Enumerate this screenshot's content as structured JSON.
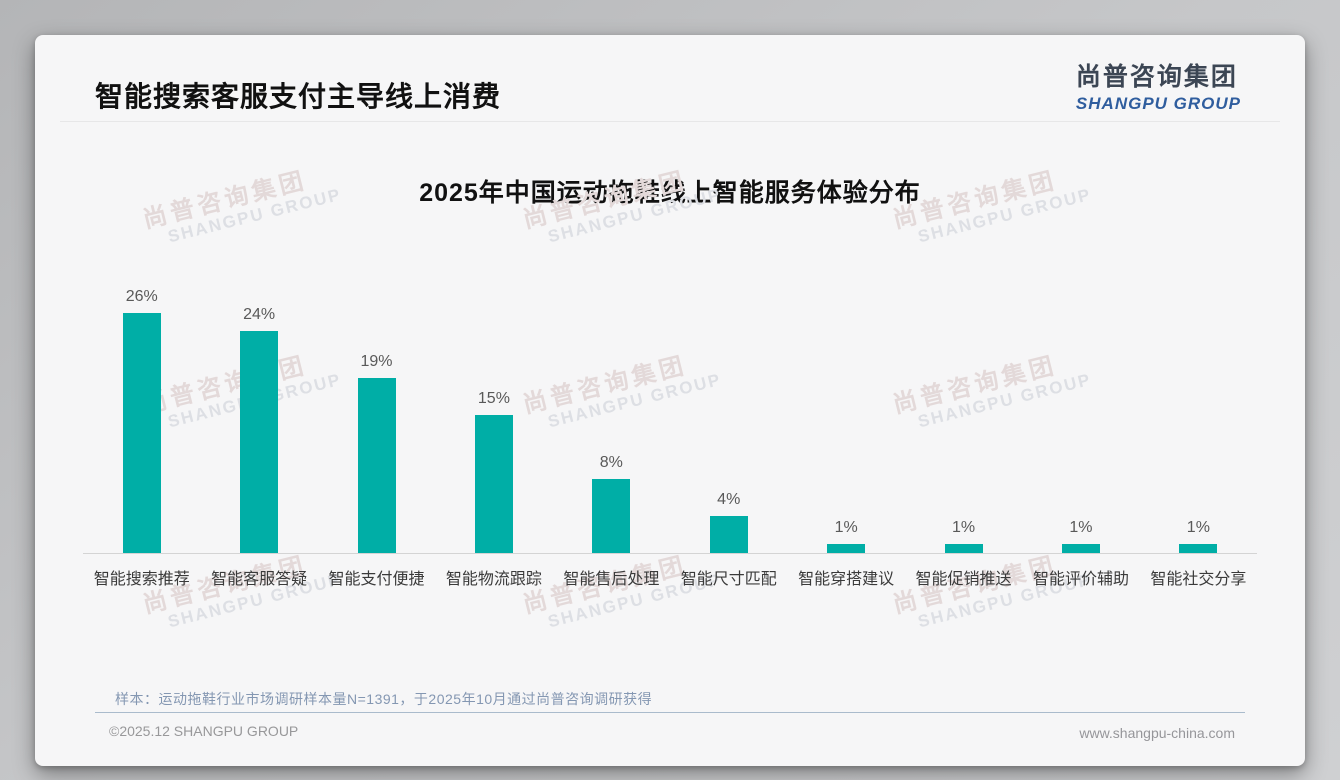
{
  "page": {
    "header_title": "智能搜索客服支付主导线上消费",
    "logo": {
      "cn": "尚普咨询集团",
      "en": "SHANGPU GROUP"
    },
    "watermark": {
      "cn": "尚普咨询集团",
      "en": "SHANGPU GROUP"
    },
    "footnote": "样本：运动拖鞋行业市场调研样本量N=1391，于2025年10月通过尚普咨询调研获得",
    "footer": {
      "left": "©2025.12 SHANGPU GROUP",
      "right": "www.shangpu-china.com"
    }
  },
  "chart_data": {
    "type": "bar",
    "title": "2025年中国运动拖鞋线上智能服务体验分布",
    "categories": [
      "智能搜索推荐",
      "智能客服答疑",
      "智能支付便捷",
      "智能物流跟踪",
      "智能售后处理",
      "智能尺寸匹配",
      "智能穿搭建议",
      "智能促销推送",
      "智能评价辅助",
      "智能社交分享"
    ],
    "values": [
      26,
      24,
      19,
      15,
      8,
      4,
      1,
      1,
      1,
      1
    ],
    "unit": "%",
    "value_labels": [
      "26%",
      "24%",
      "19%",
      "15%",
      "8%",
      "4%",
      "1%",
      "1%",
      "1%",
      "1%"
    ],
    "bar_color": "#00AEA6",
    "xlabel": "",
    "ylabel": "",
    "ylim": [
      0,
      28
    ],
    "grid": false,
    "legend": "none"
  }
}
